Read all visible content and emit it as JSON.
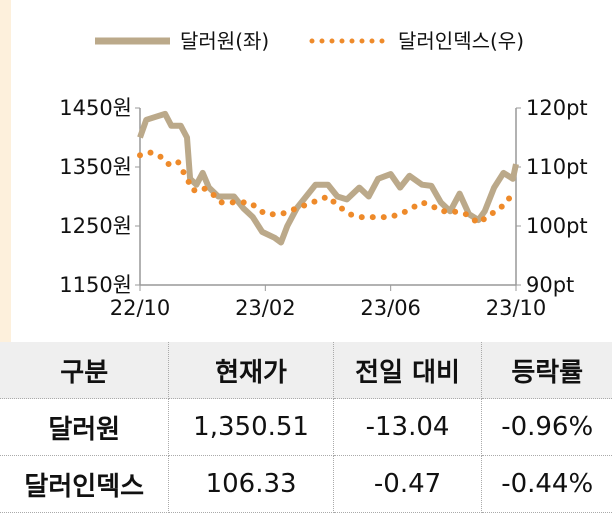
{
  "chart_data": {
    "type": "line",
    "legend_position": "top",
    "x_ticks": [
      "22/10",
      "23/02",
      "23/06",
      "23/10"
    ],
    "x_tick_months": [
      0,
      4,
      8,
      12
    ],
    "y_left": {
      "ticks": [
        "1450원",
        "1350원",
        "1250원",
        "1150원"
      ],
      "values": [
        1450,
        1350,
        1250,
        1150
      ],
      "range": [
        1150,
        1450
      ]
    },
    "y_right": {
      "ticks": [
        "120pt",
        "110pt",
        "100pt",
        "90pt"
      ],
      "values": [
        120,
        110,
        100,
        90
      ],
      "range": [
        90,
        120
      ]
    },
    "series": [
      {
        "name": "달러원(좌)",
        "axis": "left",
        "style": "line",
        "color": "#bba98a",
        "x": [
          0,
          0.2,
          0.5,
          0.8,
          1.0,
          1.3,
          1.5,
          1.6,
          1.8,
          2.0,
          2.2,
          2.5,
          3.0,
          3.3,
          3.6,
          3.9,
          4.3,
          4.5,
          4.7,
          5.0,
          5.3,
          5.6,
          6.0,
          6.3,
          6.6,
          7.0,
          7.3,
          7.6,
          8.0,
          8.3,
          8.6,
          9.0,
          9.3,
          9.6,
          9.9,
          10.2,
          10.5,
          10.8,
          11.0,
          11.3,
          11.6,
          11.9,
          12.0
        ],
        "y": [
          1400,
          1430,
          1435,
          1440,
          1420,
          1420,
          1400,
          1330,
          1320,
          1340,
          1315,
          1300,
          1300,
          1280,
          1265,
          1240,
          1230,
          1222,
          1250,
          1280,
          1300,
          1320,
          1320,
          1300,
          1295,
          1315,
          1300,
          1330,
          1338,
          1315,
          1335,
          1320,
          1318,
          1290,
          1275,
          1305,
          1270,
          1260,
          1275,
          1315,
          1340,
          1330,
          1355
        ]
      },
      {
        "name": "달러인덱스(우)",
        "axis": "right",
        "style": "dotted",
        "color": "#ee8a2a",
        "x": [
          0,
          0.3,
          0.6,
          0.9,
          1.2,
          1.5,
          1.7,
          2.0,
          2.3,
          2.6,
          3.0,
          3.5,
          4.0,
          4.5,
          5.0,
          5.5,
          6.0,
          6.3,
          6.7,
          7.0,
          7.5,
          8.0,
          8.5,
          9.0,
          9.3,
          9.6,
          10.0,
          10.4,
          10.8,
          11.2,
          11.5,
          12.0
        ],
        "y": [
          112,
          112.5,
          112,
          110.5,
          111,
          108,
          106,
          106.5,
          105.5,
          104,
          104,
          104,
          102,
          102,
          103,
          104,
          105,
          103.5,
          102,
          101.5,
          101.5,
          101.5,
          102.5,
          104,
          103.5,
          102.5,
          102.5,
          102,
          100.5,
          102,
          103,
          106
        ]
      }
    ]
  },
  "table": {
    "headers": [
      "구분",
      "현재가",
      "전일 대비",
      "등락률"
    ],
    "rows": [
      [
        "달러원",
        "1,350.51",
        "-13.04",
        "-0.96%"
      ],
      [
        "달러인덱스",
        "106.33",
        "-0.47",
        "-0.44%"
      ]
    ]
  }
}
